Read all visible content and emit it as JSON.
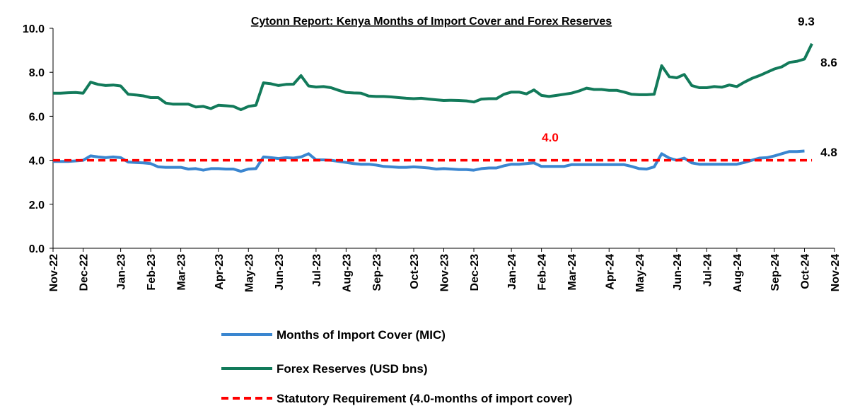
{
  "chart_data": {
    "type": "line",
    "title": "Cytonn Report: Kenya Months of Import Cover and Forex Reserves",
    "categories": [
      "Nov-22",
      null,
      null,
      null,
      "Dec-22",
      null,
      null,
      null,
      null,
      "Jan-23",
      null,
      null,
      null,
      "Feb-23",
      null,
      null,
      null,
      "Mar-23",
      null,
      null,
      null,
      null,
      "Apr-23",
      null,
      null,
      null,
      "May-23",
      null,
      null,
      null,
      "Jun-23",
      null,
      null,
      null,
      null,
      "Jul-23",
      null,
      null,
      null,
      "Aug-23",
      null,
      null,
      null,
      "Sep-23",
      null,
      null,
      null,
      null,
      "Oct-23",
      null,
      null,
      null,
      "Nov-23",
      null,
      null,
      null,
      "Dec-23",
      null,
      null,
      null,
      null,
      "Jan-24",
      null,
      null,
      null,
      "Feb-24",
      null,
      null,
      null,
      "Mar-24",
      null,
      null,
      null,
      null,
      "Apr-24",
      null,
      null,
      null,
      "May-24",
      null,
      null,
      null,
      null,
      "Jun-24",
      null,
      null,
      null,
      "Jul-24",
      null,
      null,
      null,
      "Aug-24",
      null,
      null,
      null,
      null,
      "Sep-24",
      null,
      null,
      null,
      "Oct-24",
      null,
      null,
      null,
      "Nov-24"
    ],
    "series": [
      {
        "name": "Months of Import Cover (MIC)",
        "color": "#3a86d0",
        "dash": false,
        "values": [
          3.95,
          3.95,
          3.95,
          3.97,
          4.0,
          4.2,
          4.15,
          4.12,
          4.15,
          4.12,
          3.92,
          3.9,
          3.88,
          3.85,
          3.7,
          3.68,
          3.68,
          3.68,
          3.6,
          3.62,
          3.55,
          3.62,
          3.62,
          3.6,
          3.6,
          3.5,
          3.6,
          3.62,
          4.15,
          4.12,
          4.08,
          4.12,
          4.1,
          4.15,
          4.3,
          4.02,
          4.02,
          4.0,
          3.95,
          3.9,
          3.85,
          3.82,
          3.82,
          3.78,
          3.72,
          3.7,
          3.68,
          3.68,
          3.7,
          3.68,
          3.65,
          3.6,
          3.62,
          3.6,
          3.58,
          3.58,
          3.55,
          3.62,
          3.65,
          3.65,
          3.75,
          3.82,
          3.82,
          3.85,
          3.88,
          3.72,
          3.72,
          3.72,
          3.72,
          3.8,
          3.8,
          3.8,
          3.8,
          3.8,
          3.8,
          3.8,
          3.8,
          3.72,
          3.62,
          3.6,
          3.7,
          4.3,
          4.1,
          4.0,
          4.1,
          3.88,
          3.82,
          3.82,
          3.82,
          3.82,
          3.82,
          3.82,
          3.9,
          4.0,
          4.1,
          4.12,
          4.2,
          4.3,
          4.4,
          4.4,
          4.42,
          null,
          null,
          null,
          null
        ]
      },
      {
        "name": "Forex Reserves (USD bns)",
        "color": "#127a5a",
        "dash": false,
        "values": [
          7.05,
          7.05,
          7.07,
          7.08,
          7.05,
          7.55,
          7.45,
          7.4,
          7.42,
          7.38,
          7.0,
          6.97,
          6.93,
          6.85,
          6.85,
          6.6,
          6.55,
          6.55,
          6.55,
          6.42,
          6.45,
          6.35,
          6.5,
          6.48,
          6.45,
          6.3,
          6.45,
          6.5,
          7.52,
          7.48,
          7.4,
          7.45,
          7.46,
          7.85,
          7.38,
          7.33,
          7.35,
          7.3,
          7.18,
          7.08,
          7.06,
          7.05,
          6.92,
          6.9,
          6.9,
          6.88,
          6.85,
          6.82,
          6.8,
          6.82,
          6.78,
          6.75,
          6.72,
          6.73,
          6.72,
          6.7,
          6.65,
          6.78,
          6.8,
          6.8,
          7.0,
          7.1,
          7.1,
          7.02,
          7.2,
          6.95,
          6.9,
          6.95,
          7.0,
          7.05,
          7.15,
          7.28,
          7.22,
          7.22,
          7.18,
          7.18,
          7.1,
          7.0,
          6.98,
          6.98,
          7.0,
          8.3,
          7.8,
          7.75,
          7.9,
          7.4,
          7.3,
          7.3,
          7.35,
          7.32,
          7.42,
          7.35,
          7.55,
          7.72,
          7.85,
          8.0,
          8.15,
          8.25,
          8.45,
          8.5,
          8.6,
          9.3,
          null,
          null,
          null
        ]
      },
      {
        "name": "Statutory Requirement (4.0-months of import cover)",
        "color": "#ff0000",
        "dash": true,
        "values": [
          4.0,
          4.0,
          4.0,
          4.0,
          4.0,
          4.0,
          4.0,
          4.0,
          4.0,
          4.0,
          4.0,
          4.0,
          4.0,
          4.0,
          4.0,
          4.0,
          4.0,
          4.0,
          4.0,
          4.0,
          4.0,
          4.0,
          4.0,
          4.0,
          4.0,
          4.0,
          4.0,
          4.0,
          4.0,
          4.0,
          4.0,
          4.0,
          4.0,
          4.0,
          4.0,
          4.0,
          4.0,
          4.0,
          4.0,
          4.0,
          4.0,
          4.0,
          4.0,
          4.0,
          4.0,
          4.0,
          4.0,
          4.0,
          4.0,
          4.0,
          4.0,
          4.0,
          4.0,
          4.0,
          4.0,
          4.0,
          4.0,
          4.0,
          4.0,
          4.0,
          4.0,
          4.0,
          4.0,
          4.0,
          4.0,
          4.0,
          4.0,
          4.0,
          4.0,
          4.0,
          4.0,
          4.0,
          4.0,
          4.0,
          4.0,
          4.0,
          4.0,
          4.0,
          4.0,
          4.0,
          4.0,
          4.0,
          4.0,
          4.0,
          4.0,
          4.0,
          4.0,
          4.0,
          4.0,
          4.0,
          4.0,
          4.0,
          4.0,
          4.0,
          4.0,
          4.0,
          4.0,
          4.0,
          4.0,
          4.0,
          4.0,
          4.0,
          null,
          null,
          null
        ]
      }
    ],
    "ylim": [
      0,
      10
    ],
    "yticks": [
      {
        "value": 0,
        "label": "0.0"
      },
      {
        "value": 2,
        "label": "2.0"
      },
      {
        "value": 4,
        "label": "4.0"
      },
      {
        "value": 6,
        "label": "6.0"
      },
      {
        "value": 8,
        "label": "8.0"
      },
      {
        "value": 10,
        "label": "10.0"
      }
    ],
    "grid": false,
    "annotations": [
      {
        "text": "9.3",
        "color": "#000000"
      },
      {
        "text": "8.6",
        "color": "#000000"
      },
      {
        "text": "4.0",
        "color": "#ff0000"
      },
      {
        "text": "4.8",
        "color": "#000000"
      }
    ]
  }
}
